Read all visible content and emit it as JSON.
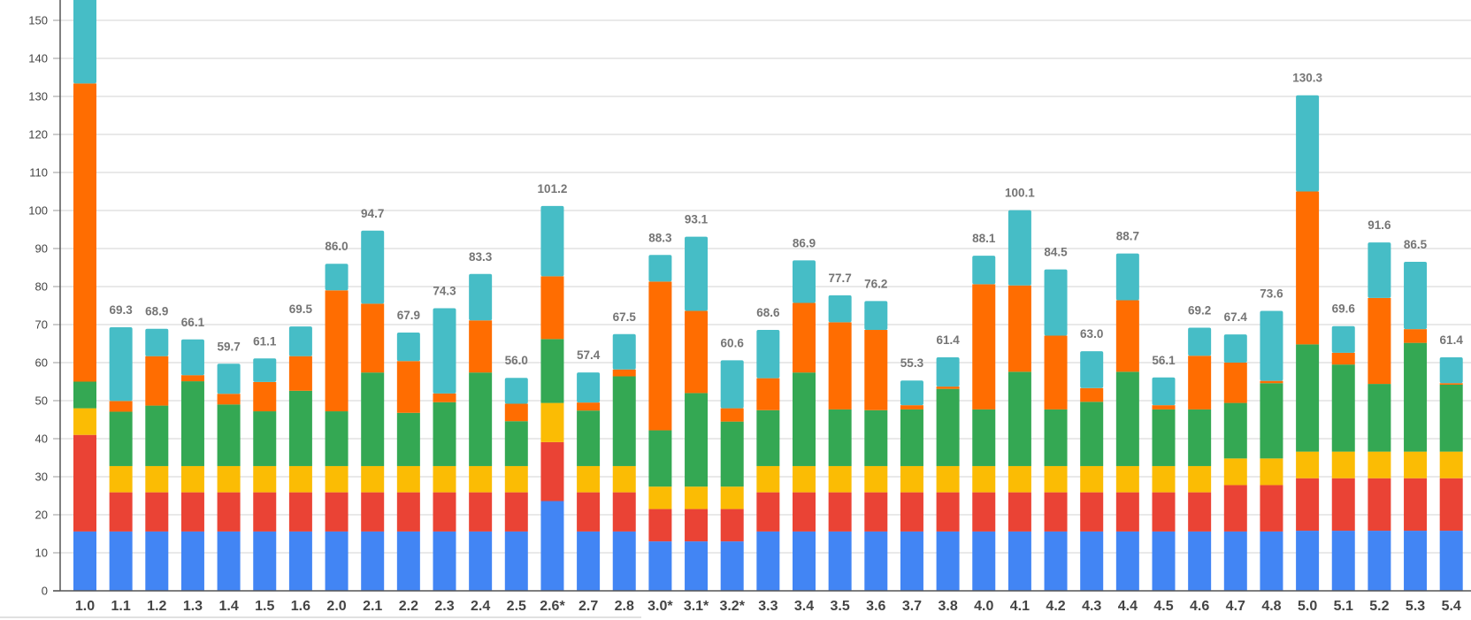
{
  "chart_data": {
    "type": "bar",
    "stacked": true,
    "title": "",
    "xlabel": "",
    "ylabel": "",
    "ylim": [
      0,
      150
    ],
    "yticks": [
      0,
      10,
      20,
      30,
      40,
      50,
      60,
      70,
      80,
      90,
      100,
      110,
      120,
      130,
      140,
      150
    ],
    "grid": true,
    "legend": "none",
    "categories": [
      "1.0",
      "1.1",
      "1.2",
      "1.3",
      "1.4",
      "1.5",
      "1.6",
      "2.0",
      "2.1",
      "2.2",
      "2.3",
      "2.4",
      "2.5",
      "2.6*",
      "2.7",
      "2.8",
      "3.0*",
      "3.1*",
      "3.2*",
      "3.3",
      "3.4",
      "3.5",
      "3.6",
      "3.7",
      "3.8",
      "4.0",
      "4.1",
      "4.2",
      "4.3",
      "4.4",
      "4.5",
      "4.6",
      "4.7",
      "4.8",
      "5.0",
      "5.1",
      "5.2",
      "5.3",
      "5.4"
    ],
    "totals_labels": [
      "",
      "69.3",
      "68.9",
      "66.1",
      "59.7",
      "61.1",
      "69.5",
      "86.0",
      "94.7",
      "67.9",
      "74.3",
      "83.3",
      "56.0",
      "101.2",
      "57.4",
      "67.5",
      "88.3",
      "93.1",
      "60.6",
      "68.6",
      "86.9",
      "77.7",
      "76.2",
      "55.3",
      "61.4",
      "88.1",
      "100.1",
      "84.5",
      "63.0",
      "88.7",
      "56.1",
      "69.2",
      "67.4",
      "73.6",
      "130.3",
      "69.6",
      "91.6",
      "86.5",
      "61.4"
    ],
    "series": [
      {
        "name": "series-1",
        "color": "#4285f4",
        "values": [
          15.6,
          15.6,
          15.6,
          15.6,
          15.6,
          15.6,
          15.6,
          15.6,
          15.6,
          15.6,
          15.6,
          15.6,
          15.6,
          23.6,
          15.6,
          15.6,
          13.0,
          13.0,
          13.0,
          15.6,
          15.6,
          15.6,
          15.6,
          15.6,
          15.6,
          15.6,
          15.6,
          15.6,
          15.6,
          15.6,
          15.6,
          15.6,
          15.6,
          15.6,
          15.8,
          15.8,
          15.8,
          15.8,
          15.8
        ]
      },
      {
        "name": "series-2",
        "color": "#ea4335",
        "values": [
          25.4,
          10.3,
          10.3,
          10.3,
          10.3,
          10.3,
          10.3,
          10.3,
          10.3,
          10.3,
          10.3,
          10.3,
          10.3,
          15.5,
          10.3,
          10.3,
          8.5,
          8.5,
          8.5,
          10.3,
          10.3,
          10.3,
          10.3,
          10.3,
          10.3,
          10.3,
          10.3,
          10.3,
          10.3,
          10.3,
          10.3,
          10.3,
          12.2,
          12.2,
          13.8,
          13.8,
          13.8,
          13.8,
          13.8
        ]
      },
      {
        "name": "series-3",
        "color": "#fbbc04",
        "values": [
          7.0,
          6.9,
          6.9,
          6.9,
          6.9,
          6.9,
          6.9,
          6.9,
          6.9,
          6.9,
          6.9,
          6.9,
          6.9,
          10.3,
          6.9,
          6.9,
          5.9,
          5.9,
          5.9,
          6.9,
          6.9,
          6.9,
          6.9,
          6.9,
          6.9,
          6.9,
          6.9,
          6.9,
          6.9,
          6.9,
          6.9,
          6.9,
          7.0,
          7.0,
          7.0,
          7.0,
          7.0,
          7.0,
          7.0
        ]
      },
      {
        "name": "series-4",
        "color": "#34a853",
        "values": [
          7.0,
          14.3,
          15.9,
          22.3,
          16.2,
          14.4,
          19.8,
          14.4,
          24.6,
          14.0,
          16.8,
          24.6,
          11.8,
          16.8,
          14.6,
          23.6,
          14.8,
          24.6,
          17.1,
          14.7,
          24.6,
          14.9,
          14.7,
          14.9,
          20.3,
          14.9,
          24.8,
          14.9,
          16.9,
          24.8,
          14.9,
          14.9,
          14.6,
          19.8,
          28.2,
          22.9,
          17.8,
          28.6,
          17.6
        ]
      },
      {
        "name": "series-5",
        "color": "#ff6d01",
        "values": [
          78.4,
          2.8,
          13.0,
          1.6,
          2.8,
          7.7,
          9.1,
          31.8,
          18.1,
          13.6,
          2.3,
          13.7,
          4.6,
          16.5,
          2.1,
          1.8,
          39.1,
          21.6,
          3.5,
          8.4,
          18.3,
          22.9,
          21.1,
          1.1,
          0.6,
          32.9,
          22.7,
          19.4,
          3.6,
          18.8,
          1.1,
          14.1,
          10.6,
          0.6,
          40.2,
          3.1,
          22.6,
          3.6,
          0.4
        ]
      },
      {
        "name": "series-6",
        "color": "#46bdc6",
        "values": [
          26.6,
          19.4,
          7.2,
          9.4,
          7.9,
          6.2,
          7.8,
          7.0,
          19.2,
          7.5,
          22.4,
          12.2,
          6.8,
          18.5,
          7.9,
          9.3,
          7.0,
          19.5,
          12.6,
          12.7,
          11.2,
          7.1,
          7.6,
          6.5,
          7.7,
          7.5,
          19.8,
          17.4,
          9.7,
          12.3,
          7.3,
          7.4,
          7.4,
          18.4,
          25.3,
          7.0,
          14.6,
          17.7,
          6.8
        ]
      }
    ]
  }
}
